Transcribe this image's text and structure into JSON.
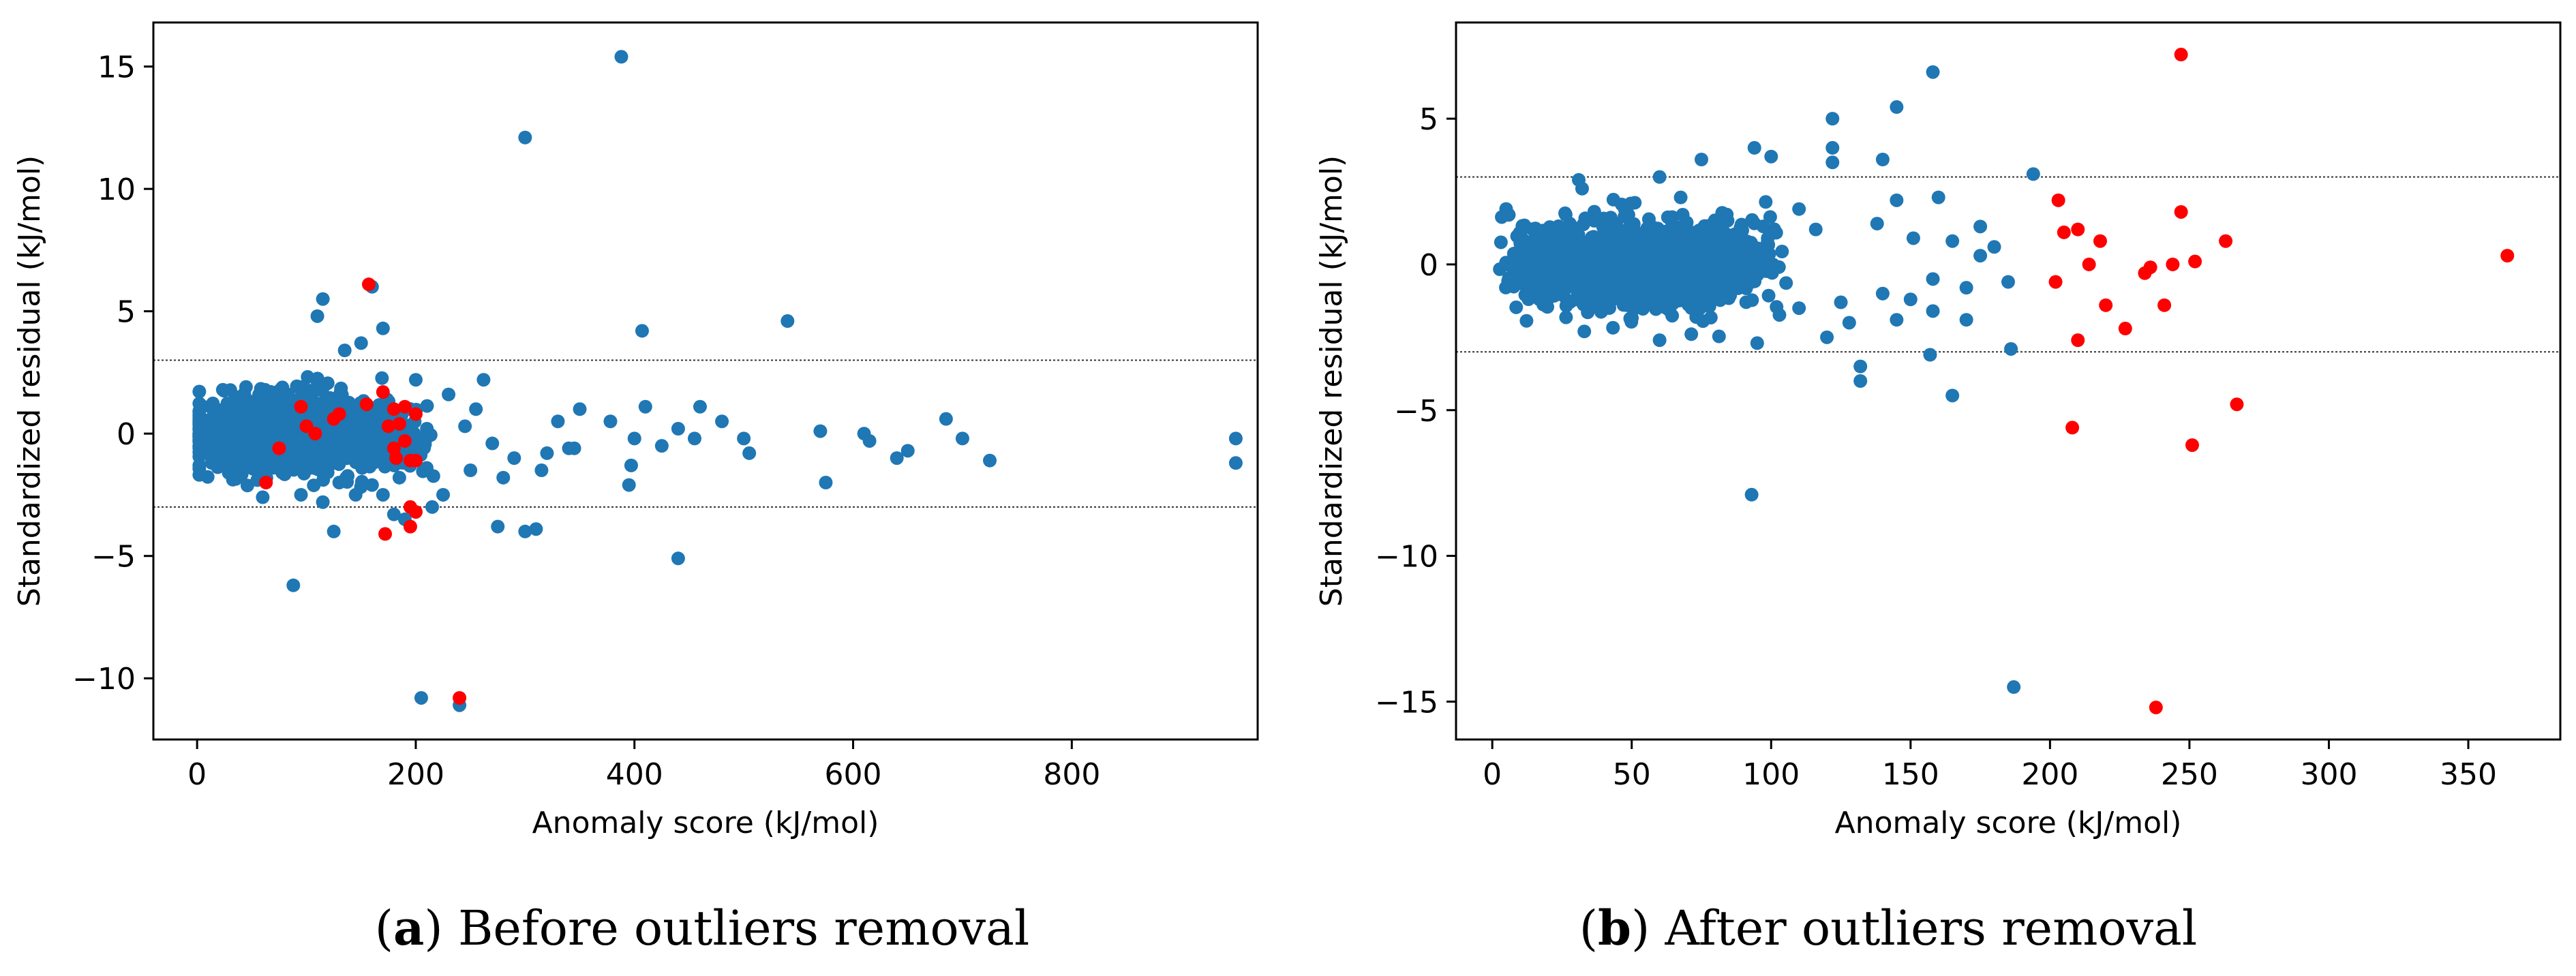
{
  "colors": {
    "inlier": "#1f77b4",
    "outlier": "#ff0000",
    "threshold": "#333333"
  },
  "chart_data": [
    {
      "type": "scatter",
      "panel_label": "a",
      "caption": "Before outliers removal",
      "xlabel": "Anomaly score (kJ/mol)",
      "ylabel": "Standardized residual (kJ/mol)",
      "xlim": [
        -40,
        970
      ],
      "ylim": [
        -12.5,
        16.8
      ],
      "xticks": [
        0,
        200,
        400,
        600,
        800
      ],
      "yticks": [
        -10,
        -5,
        0,
        5,
        10,
        15
      ],
      "xtick_labels": [
        "0",
        "200",
        "400",
        "600",
        "800"
      ],
      "ytick_labels": [
        "−10",
        "−5",
        "0",
        "5",
        "10",
        "15"
      ],
      "thresholds": [
        3,
        -3
      ],
      "cluster": {
        "x_range": [
          2,
          220
        ],
        "density_peak_x": 60,
        "count": 1200,
        "seed": 11
      },
      "series": [
        {
          "name": "Inliers",
          "color": "#1f77b4",
          "points": [
            [
              388,
              15.4
            ],
            [
              300,
              12.1
            ],
            [
              160,
              6.0
            ],
            [
              115,
              5.5
            ],
            [
              540,
              4.6
            ],
            [
              407,
              4.2
            ],
            [
              170,
              4.3
            ],
            [
              110,
              4.8
            ],
            [
              135,
              3.4
            ],
            [
              150,
              3.7
            ],
            [
              88,
              -6.2
            ],
            [
              440,
              -5.1
            ],
            [
              205,
              -10.8
            ],
            [
              240,
              -11.1
            ],
            [
              950,
              -0.2
            ],
            [
              950,
              -1.2
            ],
            [
              725,
              -1.1
            ],
            [
              700,
              -0.2
            ],
            [
              685,
              0.6
            ],
            [
              650,
              -0.7
            ],
            [
              640,
              -1.0
            ],
            [
              615,
              -0.3
            ],
            [
              610,
              0.0
            ],
            [
              575,
              -2.0
            ],
            [
              570,
              0.1
            ],
            [
              505,
              -0.8
            ],
            [
              500,
              -0.2
            ],
            [
              480,
              0.5
            ],
            [
              460,
              1.1
            ],
            [
              455,
              -0.2
            ],
            [
              440,
              0.2
            ],
            [
              425,
              -0.5
            ],
            [
              410,
              1.1
            ],
            [
              400,
              -0.2
            ],
            [
              397,
              -1.3
            ],
            [
              395,
              -2.1
            ],
            [
              378,
              0.5
            ],
            [
              350,
              1.0
            ],
            [
              345,
              -0.6
            ],
            [
              340,
              -0.6
            ],
            [
              330,
              0.5
            ],
            [
              320,
              -0.8
            ],
            [
              315,
              -1.5
            ],
            [
              310,
              -3.9
            ],
            [
              300,
              -4.0
            ],
            [
              290,
              -1.0
            ],
            [
              280,
              -1.8
            ],
            [
              275,
              -3.8
            ],
            [
              270,
              -0.4
            ],
            [
              262,
              2.2
            ],
            [
              255,
              1.0
            ],
            [
              250,
              -1.5
            ],
            [
              245,
              0.3
            ],
            [
              230,
              1.6
            ],
            [
              225,
              -2.5
            ],
            [
              215,
              -3.0
            ],
            [
              210,
              -1.4
            ],
            [
              200,
              2.2
            ],
            [
              190,
              -3.5
            ],
            [
              180,
              -3.3
            ],
            [
              170,
              -2.5
            ],
            [
              160,
              -2.1
            ],
            [
              125,
              -4.0
            ],
            [
              115,
              -2.8
            ],
            [
              95,
              -2.5
            ],
            [
              60,
              -2.6
            ],
            [
              55,
              -1.9
            ],
            [
              130,
              -2.0
            ],
            [
              145,
              -2.5
            ],
            [
              185,
              -1.8
            ]
          ]
        },
        {
          "name": "Outliers",
          "color": "#ff0000",
          "points": [
            [
              157,
              6.1
            ],
            [
              170,
              1.7
            ],
            [
              180,
              1.0
            ],
            [
              185,
              0.4
            ],
            [
              190,
              1.1
            ],
            [
              200,
              0.8
            ],
            [
              190,
              -0.3
            ],
            [
              175,
              0.3
            ],
            [
              180,
              -0.6
            ],
            [
              182,
              -1.0
            ],
            [
              195,
              -1.1
            ],
            [
              200,
              -1.1
            ],
            [
              195,
              -3.0
            ],
            [
              200,
              -3.2
            ],
            [
              195,
              -3.8
            ],
            [
              172,
              -4.1
            ],
            [
              240,
              -10.8
            ],
            [
              155,
              1.2
            ],
            [
              130,
              0.8
            ],
            [
              100,
              0.3
            ],
            [
              108,
              0.0
            ],
            [
              95,
              1.1
            ],
            [
              75,
              -0.6
            ],
            [
              63,
              -2.0
            ],
            [
              125,
              0.6
            ]
          ]
        }
      ]
    },
    {
      "type": "scatter",
      "panel_label": "b",
      "caption": "After outliers removal",
      "xlabel": "Anomaly score (kJ/mol)",
      "ylabel": "Standardized residual (kJ/mol)",
      "xlim": [
        -13,
        383
      ],
      "ylim": [
        -16.3,
        8.3
      ],
      "xticks": [
        0,
        50,
        100,
        150,
        200,
        250,
        300,
        350
      ],
      "yticks": [
        -15,
        -10,
        -5,
        0,
        5
      ],
      "xtick_labels": [
        "0",
        "50",
        "100",
        "150",
        "200",
        "250",
        "300",
        "350"
      ],
      "ytick_labels": [
        "−15",
        "−10",
        "−5",
        "0",
        "5"
      ],
      "thresholds": [
        3,
        -3
      ],
      "cluster": {
        "x_range": [
          2,
          110
        ],
        "density_peak_x": 55,
        "count": 1300,
        "seed": 29
      },
      "series": [
        {
          "name": "Inliers",
          "color": "#1f77b4",
          "points": [
            [
              158,
              6.6
            ],
            [
              122,
              5.0
            ],
            [
              145,
              5.4
            ],
            [
              100,
              3.7
            ],
            [
              122,
              4.0
            ],
            [
              94,
              4.0
            ],
            [
              140,
              3.6
            ],
            [
              122,
              3.5
            ],
            [
              194,
              3.1
            ],
            [
              75,
              3.6
            ],
            [
              31,
              2.9
            ],
            [
              60,
              3.0
            ],
            [
              145,
              2.2
            ],
            [
              160,
              2.3
            ],
            [
              110,
              1.9
            ],
            [
              175,
              1.3
            ],
            [
              165,
              0.8
            ],
            [
              180,
              0.6
            ],
            [
              185,
              -0.6
            ],
            [
              170,
              -0.8
            ],
            [
              158,
              -1.6
            ],
            [
              186,
              -2.9
            ],
            [
              157,
              -3.1
            ],
            [
              132,
              -3.5
            ],
            [
              132,
              -4.0
            ],
            [
              165,
              -4.5
            ],
            [
              93,
              -7.9
            ],
            [
              187,
              -14.5
            ],
            [
              145,
              -1.9
            ],
            [
              150,
              -1.2
            ],
            [
              140,
              -1.0
            ],
            [
              128,
              -2.0
            ],
            [
              120,
              -2.5
            ],
            [
              60,
              -2.6
            ],
            [
              33,
              -2.3
            ],
            [
              110,
              -1.5
            ],
            [
              138,
              1.4
            ],
            [
              151,
              0.9
            ],
            [
              158,
              -0.5
            ],
            [
              170,
              -1.9
            ],
            [
              175,
              0.3
            ],
            [
              116,
              1.2
            ],
            [
              125,
              -1.3
            ],
            [
              95,
              -2.7
            ]
          ]
        },
        {
          "name": "Outliers",
          "color": "#ff0000",
          "points": [
            [
              247,
              7.2
            ],
            [
              203,
              2.2
            ],
            [
              247,
              1.8
            ],
            [
              210,
              1.2
            ],
            [
              205,
              1.1
            ],
            [
              218,
              0.8
            ],
            [
              263,
              0.8
            ],
            [
              252,
              0.1
            ],
            [
              244,
              0.0
            ],
            [
              214,
              0.0
            ],
            [
              236,
              -0.1
            ],
            [
              234,
              -0.3
            ],
            [
              364,
              0.3
            ],
            [
              202,
              -0.6
            ],
            [
              220,
              -1.4
            ],
            [
              241,
              -1.4
            ],
            [
              227,
              -2.2
            ],
            [
              210,
              -2.6
            ],
            [
              267,
              -4.8
            ],
            [
              208,
              -5.6
            ],
            [
              251,
              -6.2
            ],
            [
              238,
              -15.2
            ]
          ]
        }
      ]
    }
  ]
}
